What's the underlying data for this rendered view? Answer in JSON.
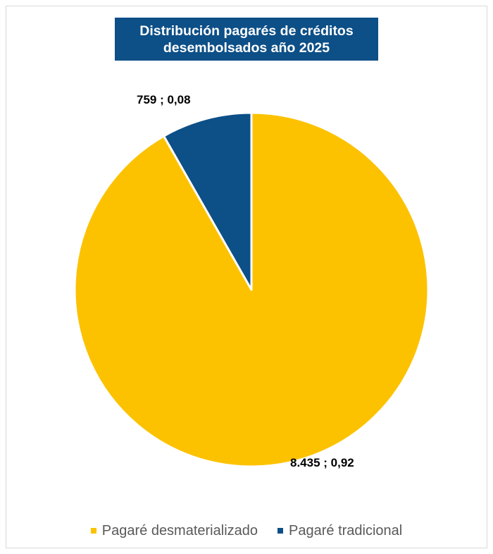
{
  "chart_data": {
    "type": "pie",
    "title": "Distribución pagarés de créditos desembolsados año 2025",
    "title_lines": [
      "Distribución pagarés de créditos",
      "desembolsados año 2025"
    ],
    "categories": [
      "Pagaré desmaterializado",
      "Pagaré tradicional"
    ],
    "values": [
      8435,
      759
    ],
    "shares": [
      0.92,
      0.08
    ],
    "colors": [
      "#fcc200",
      "#0d4f87"
    ],
    "data_labels": [
      "8.435 ; 0,92",
      "759 ; 0,08"
    ],
    "legend_position": "bottom",
    "start_angle": "top, clockwise"
  }
}
